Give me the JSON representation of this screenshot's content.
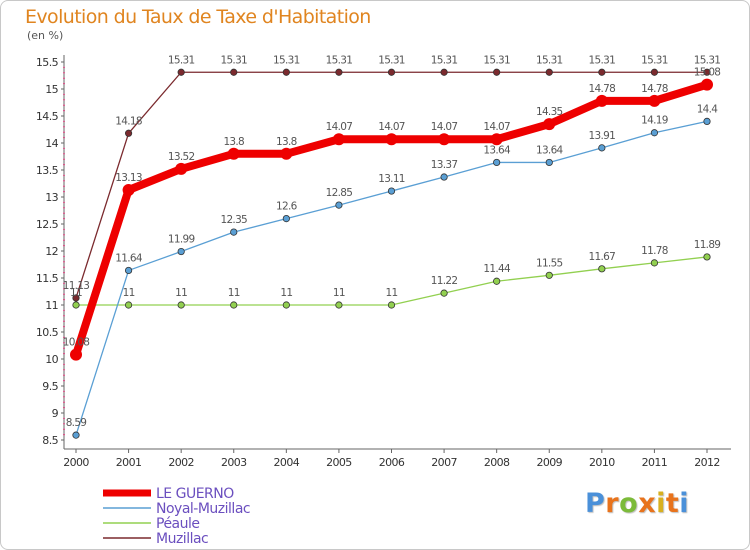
{
  "title": "Evolution du Taux de Taxe d'Habitation",
  "unit": "(en %)",
  "logo": {
    "text": "Proxiti",
    "letter_colors": [
      "#4a90d9",
      "#e8731c",
      "#7cbb3a",
      "#e8731c",
      "#d8b020",
      "#e8731c",
      "#4a90d9"
    ]
  },
  "chart_data": {
    "type": "line",
    "x": [
      "2000",
      "2001",
      "2002",
      "2003",
      "2004",
      "2005",
      "2006",
      "2007",
      "2008",
      "2009",
      "2010",
      "2011",
      "2012"
    ],
    "ylim": [
      8.5,
      15.5
    ],
    "yticks": [
      "8.5",
      "9",
      "9.5",
      "10",
      "10.5",
      "11",
      "11.5",
      "12",
      "12.5",
      "13",
      "13.5",
      "14",
      "14.5",
      "15",
      "15.5"
    ],
    "grid": false,
    "legend_position": "bottom-left",
    "series": [
      {
        "name": "Muzillac",
        "color": "#7b2a2e",
        "values": [
          11.13,
          14.18,
          15.31,
          15.31,
          15.31,
          15.31,
          15.31,
          15.31,
          15.31,
          15.31,
          15.31,
          15.31,
          15.31
        ],
        "labels": [
          "11.13",
          "14.18",
          "15.31",
          "15.31",
          "15.31",
          "15.31",
          "15.31",
          "15.31",
          "15.31",
          "15.31",
          "15.31",
          "15.31",
          "15.31"
        ]
      },
      {
        "name": "Péaule",
        "color": "#92d050",
        "values": [
          11,
          11,
          11,
          11,
          11,
          11,
          11,
          11.22,
          11.44,
          11.55,
          11.67,
          11.78,
          11.89
        ],
        "labels": [
          "11",
          "11",
          "11",
          "11",
          "11",
          "11",
          "11",
          "11.22",
          "11.44",
          "11.55",
          "11.67",
          "11.78",
          "11.89"
        ]
      },
      {
        "name": "Noyal-Muzillac",
        "color": "#5a9fd4",
        "values": [
          8.59,
          11.64,
          11.99,
          12.35,
          12.6,
          12.85,
          13.11,
          13.37,
          13.64,
          13.64,
          13.91,
          14.19,
          14.4
        ],
        "labels": [
          "8.59",
          "11.64",
          "11.99",
          "12.35",
          "12.6",
          "12.85",
          "13.11",
          "13.37",
          "13.64",
          "13.64",
          "13.91",
          "14.19",
          "14.4"
        ]
      },
      {
        "name": "LE GUERNO",
        "color": "#ee0000",
        "values": [
          10.08,
          13.13,
          13.52,
          13.8,
          13.8,
          14.07,
          14.07,
          14.07,
          14.07,
          14.35,
          14.78,
          14.78,
          15.08
        ],
        "labels": [
          "10.08",
          "13.13",
          "13.52",
          "13.8",
          "13.8",
          "14.07",
          "14.07",
          "14.07",
          "14.07",
          "14.35",
          "14.78",
          "14.78",
          "15.08"
        ]
      }
    ],
    "legend": [
      "LE GUERNO",
      "Noyal-Muzillac",
      "Péaule",
      "Muzillac"
    ]
  }
}
